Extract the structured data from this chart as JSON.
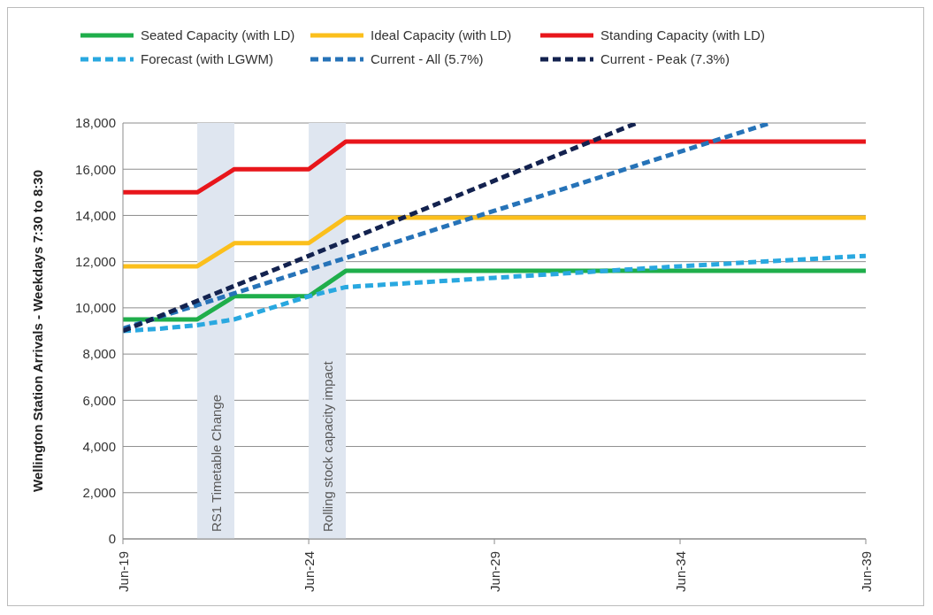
{
  "chart_data": {
    "type": "line",
    "ylabel": "Wellington Station Arrivals - Weekdays 7:30 to 8:30",
    "xlim": [
      "2019-06",
      "2039-06"
    ],
    "xticks": [
      {
        "value": "2019-06",
        "label": "Jun-19"
      },
      {
        "value": "2024-06",
        "label": "Jun-24"
      },
      {
        "value": "2029-06",
        "label": "Jun-29"
      },
      {
        "value": "2034-06",
        "label": "Jun-34"
      },
      {
        "value": "2039-06",
        "label": "Jun-39"
      }
    ],
    "ylim": [
      0,
      18000
    ],
    "yticks": [
      {
        "value": 0,
        "label": "0"
      },
      {
        "value": 2000,
        "label": "2,000"
      },
      {
        "value": 4000,
        "label": "4,000"
      },
      {
        "value": 6000,
        "label": "6,000"
      },
      {
        "value": 8000,
        "label": "8,000"
      },
      {
        "value": 10000,
        "label": "10,000"
      },
      {
        "value": 12000,
        "label": "12,000"
      },
      {
        "value": 14000,
        "label": "14,000"
      },
      {
        "value": 16000,
        "label": "16,000"
      },
      {
        "value": 18000,
        "label": "18,000"
      }
    ],
    "grid": "y",
    "legend": "top",
    "series": [
      {
        "name": "Seated Capacity (with LD)",
        "color": "#1fae4b",
        "line_style": "solid",
        "x": [
          "2019-06",
          "2021-06",
          "2022-06",
          "2024-06",
          "2025-06",
          "2039-06"
        ],
        "values": [
          9500,
          9500,
          10500,
          10500,
          11600,
          11600
        ]
      },
      {
        "name": "Ideal Capacity (with LD)",
        "color": "#fbbf1c",
        "line_style": "solid",
        "x": [
          "2019-06",
          "2021-06",
          "2022-06",
          "2024-06",
          "2025-06",
          "2039-06"
        ],
        "values": [
          11800,
          11800,
          12800,
          12800,
          13900,
          13900
        ]
      },
      {
        "name": "Standing Capacity (with LD)",
        "color": "#e8161b",
        "line_style": "solid",
        "x": [
          "2019-06",
          "2021-06",
          "2022-06",
          "2024-06",
          "2025-06",
          "2039-06"
        ],
        "values": [
          15000,
          15000,
          16000,
          16000,
          17200,
          17200
        ]
      },
      {
        "name": "Forecast (with LGWM)",
        "color": "#29a8e0",
        "line_style": "dashed",
        "x": [
          "2019-06",
          "2020-06",
          "2021-06",
          "2022-06",
          "2023-06",
          "2024-06",
          "2025-06",
          "2029-06",
          "2034-06",
          "2039-06"
        ],
        "values": [
          9000,
          9100,
          9250,
          9500,
          10000,
          10500,
          10900,
          11300,
          11800,
          12250
        ]
      },
      {
        "name": "Current - All (5.7%)",
        "color": "#2673b8",
        "line_style": "dashed",
        "x": [
          "2019-06",
          "2029-06",
          "2036-11"
        ],
        "values": [
          9100,
          14200,
          18000
        ]
      },
      {
        "name": "Current - Peak (7.3%)",
        "color": "#13224f",
        "line_style": "dashed",
        "x": [
          "2019-06",
          "2024-06",
          "2033-04"
        ],
        "values": [
          9000,
          12250,
          18000
        ]
      }
    ],
    "bands": [
      {
        "axis": "x",
        "from": "2021-06",
        "to": "2022-06",
        "label": "RS1 Timetable Change",
        "color": "#dfe6f0"
      },
      {
        "axis": "x",
        "from": "2024-06",
        "to": "2025-06",
        "label": "Rolling stock capacity impact",
        "color": "#dfe6f0"
      }
    ]
  }
}
